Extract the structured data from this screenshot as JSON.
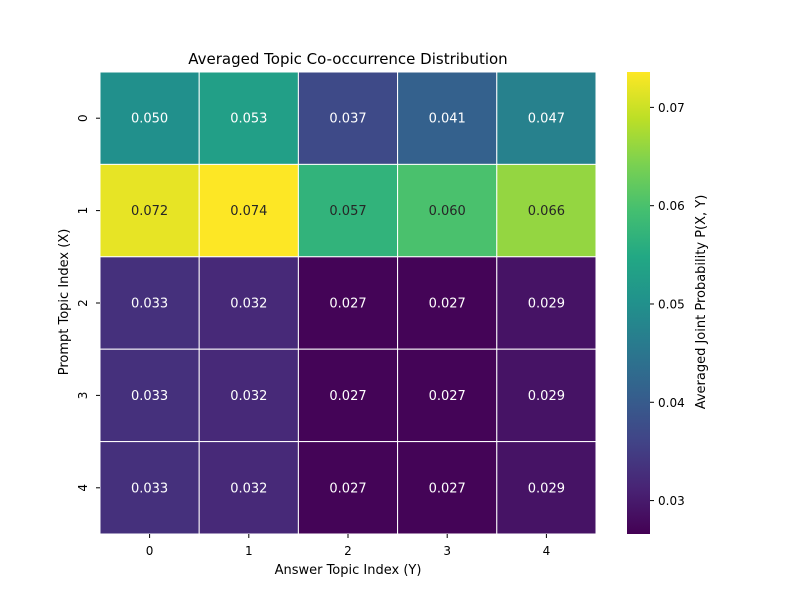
{
  "chart_data": {
    "type": "heatmap",
    "title": "Averaged Topic Co-occurrence Distribution",
    "xlabel": "Answer Topic Index (Y)",
    "ylabel": "Prompt Topic Index (X)",
    "x_categories": [
      "0",
      "1",
      "2",
      "3",
      "4"
    ],
    "y_categories": [
      "0",
      "1",
      "2",
      "3",
      "4"
    ],
    "values": [
      [
        0.05,
        0.053,
        0.037,
        0.041,
        0.047
      ],
      [
        0.072,
        0.074,
        0.057,
        0.06,
        0.066
      ],
      [
        0.033,
        0.032,
        0.027,
        0.027,
        0.029
      ],
      [
        0.033,
        0.032,
        0.027,
        0.027,
        0.029
      ],
      [
        0.033,
        0.032,
        0.027,
        0.027,
        0.029
      ]
    ],
    "cell_labels": [
      [
        "0.050",
        "0.053",
        "0.037",
        "0.041",
        "0.047"
      ],
      [
        "0.072",
        "0.074",
        "0.057",
        "0.060",
        "0.066"
      ],
      [
        "0.033",
        "0.032",
        "0.027",
        "0.027",
        "0.029"
      ],
      [
        "0.033",
        "0.032",
        "0.027",
        "0.027",
        "0.029"
      ],
      [
        "0.033",
        "0.032",
        "0.027",
        "0.027",
        "0.029"
      ]
    ],
    "colormap": "viridis",
    "color_range": [
      0.0266,
      0.0736
    ],
    "colorbar": {
      "label": "Averaged Joint Probability P(X, Y)",
      "ticks": [
        0.03,
        0.04,
        0.05,
        0.06,
        0.07
      ],
      "tick_labels": [
        "0.03",
        "0.04",
        "0.05",
        "0.06",
        "0.07"
      ],
      "placement": "right"
    },
    "grid": false,
    "cell_separator_color": "#ffffff",
    "text_colors": {
      "dark_cells": "#ffffff",
      "bright_cells": "#262626"
    }
  }
}
